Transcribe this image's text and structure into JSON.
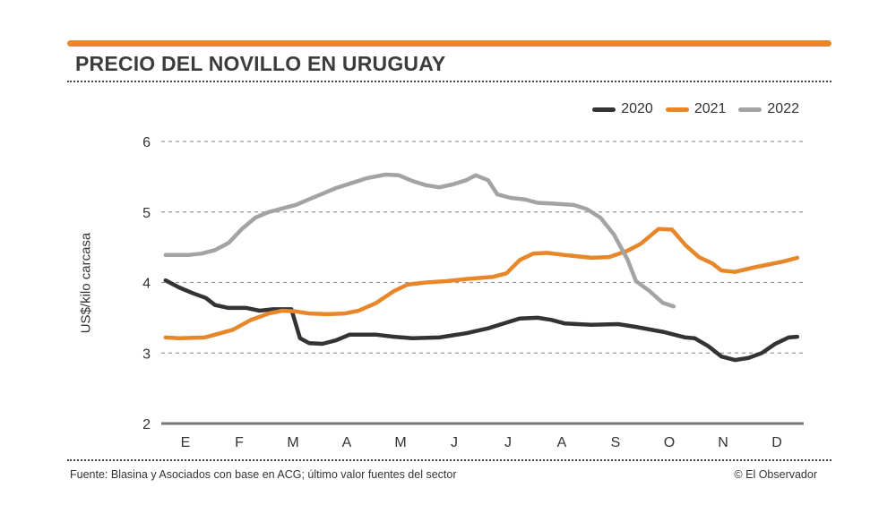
{
  "header": {
    "title": "PRECIO DEL NOVILLO EN URUGUAY"
  },
  "footer": {
    "source": "Fuente: Blasina y Asociados con base en ACG; último valor fuentes del sector",
    "credit": "© El Observador"
  },
  "colors": {
    "accent": "#e8862a",
    "s2020": "#333333",
    "s2021": "#e8862a",
    "s2022": "#a3a3a3",
    "grid": "#999999",
    "axis": "#777777"
  },
  "chart_data": {
    "type": "line",
    "title": "PRECIO DEL NOVILLO EN URUGUAY",
    "xlabel": "",
    "ylabel": "US$/kilo carcasa",
    "ylim": [
      2,
      6
    ],
    "yticks": [
      "2",
      "3",
      "4",
      "5",
      "6"
    ],
    "categories": [
      "E",
      "F",
      "M",
      "A",
      "M",
      "J",
      "J",
      "A",
      "S",
      "O",
      "N",
      "D"
    ],
    "x_note": "x is month index (0=E ... 11=D)",
    "legend_position": "top-right",
    "series": [
      {
        "name": "2020",
        "color": "#333333",
        "x": [
          -0.37,
          -0.12,
          0.13,
          0.38,
          0.55,
          0.8,
          1.13,
          1.38,
          1.63,
          1.97,
          2.13,
          2.3,
          2.55,
          2.8,
          3.05,
          3.55,
          3.88,
          4.22,
          4.72,
          5.22,
          5.63,
          5.88,
          6.22,
          6.55,
          6.8,
          7.05,
          7.55,
          8.05,
          8.38,
          8.88,
          9.3,
          9.47,
          9.72,
          9.97,
          10.22,
          10.47,
          10.72,
          10.97,
          11.22,
          11.38
        ],
        "y": [
          4.03,
          3.93,
          3.85,
          3.78,
          3.68,
          3.64,
          3.64,
          3.6,
          3.62,
          3.62,
          3.21,
          3.14,
          3.13,
          3.18,
          3.26,
          3.26,
          3.23,
          3.21,
          3.22,
          3.28,
          3.35,
          3.41,
          3.49,
          3.5,
          3.47,
          3.42,
          3.4,
          3.41,
          3.37,
          3.3,
          3.22,
          3.21,
          3.1,
          2.95,
          2.9,
          2.93,
          3.0,
          3.13,
          3.22,
          3.23
        ]
      },
      {
        "name": "2021",
        "color": "#e8862a",
        "x": [
          -0.37,
          -0.12,
          0.35,
          0.55,
          0.88,
          1.22,
          1.55,
          1.8,
          2.05,
          2.3,
          2.63,
          2.97,
          3.22,
          3.55,
          3.88,
          4.13,
          4.47,
          4.88,
          5.22,
          5.72,
          5.97,
          6.22,
          6.47,
          6.72,
          7.05,
          7.55,
          7.88,
          8.22,
          8.47,
          8.8,
          9.05,
          9.3,
          9.55,
          9.8,
          9.97,
          10.22,
          10.55,
          10.88,
          11.13,
          11.38
        ],
        "y": [
          3.22,
          3.21,
          3.22,
          3.26,
          3.33,
          3.47,
          3.56,
          3.6,
          3.59,
          3.56,
          3.55,
          3.56,
          3.6,
          3.71,
          3.88,
          3.97,
          4.0,
          4.02,
          4.05,
          4.08,
          4.13,
          4.32,
          4.41,
          4.42,
          4.39,
          4.35,
          4.36,
          4.45,
          4.55,
          4.76,
          4.75,
          4.53,
          4.36,
          4.27,
          4.17,
          4.15,
          4.21,
          4.26,
          4.3,
          4.35
        ]
      },
      {
        "name": "2022",
        "color": "#a3a3a3",
        "x": [
          -0.37,
          0.05,
          0.3,
          0.55,
          0.8,
          1.05,
          1.3,
          1.55,
          1.8,
          2.05,
          2.3,
          2.55,
          2.8,
          3.13,
          3.38,
          3.72,
          3.97,
          4.22,
          4.47,
          4.72,
          4.97,
          5.22,
          5.4,
          5.63,
          5.8,
          6.05,
          6.3,
          6.55,
          6.8,
          7.22,
          7.47,
          7.72,
          7.97,
          8.22,
          8.38,
          8.63,
          8.88,
          9.08
        ],
        "y": [
          4.39,
          4.39,
          4.41,
          4.46,
          4.56,
          4.76,
          4.92,
          5.0,
          5.05,
          5.1,
          5.18,
          5.26,
          5.34,
          5.42,
          5.48,
          5.53,
          5.52,
          5.44,
          5.38,
          5.35,
          5.39,
          5.45,
          5.52,
          5.45,
          5.25,
          5.2,
          5.18,
          5.13,
          5.12,
          5.1,
          5.04,
          4.92,
          4.68,
          4.33,
          4.02,
          3.88,
          3.71,
          3.66
        ]
      }
    ]
  }
}
